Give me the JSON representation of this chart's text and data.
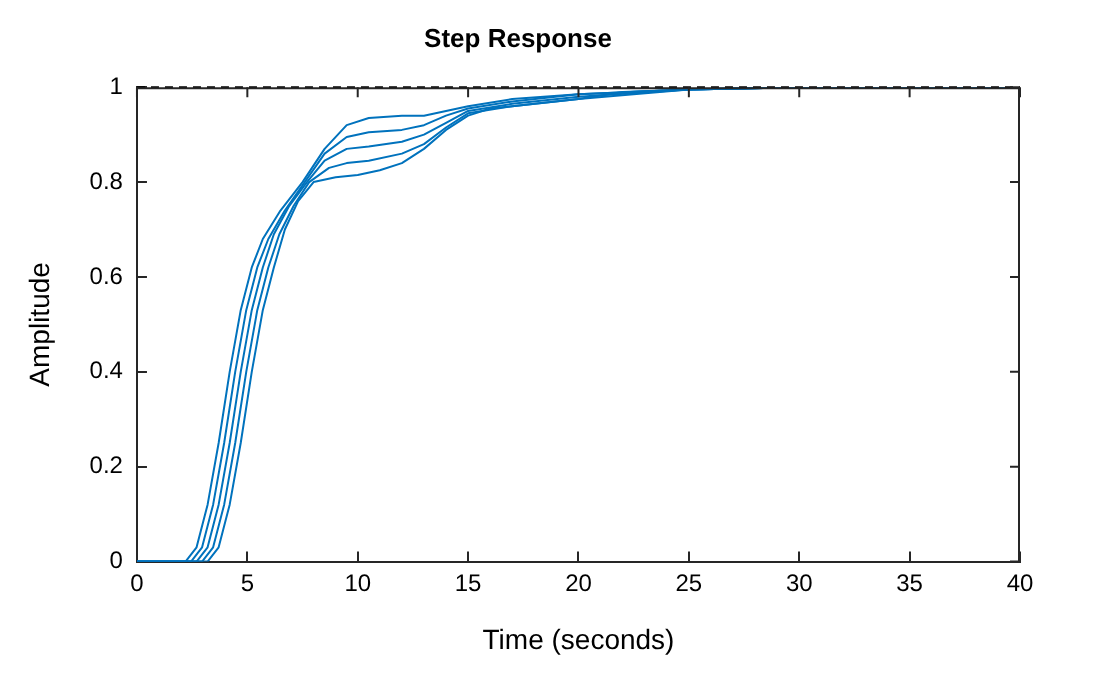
{
  "chart_data": {
    "type": "line",
    "title": "Step Response",
    "xlabel": "Time (seconds)",
    "ylabel": "Amplitude",
    "xlim": [
      0,
      40
    ],
    "xticks": [
      0,
      5,
      10,
      15,
      20,
      25,
      30,
      35,
      40
    ],
    "ylim": [
      0,
      1
    ],
    "yticks": [
      0,
      0.2,
      0.4,
      0.6,
      0.8,
      1
    ],
    "grid": false,
    "legend": false,
    "marker": "none",
    "line_style": "solid",
    "ref_lines": [
      {
        "axis": "y",
        "value": 1,
        "color": "#000000",
        "line_style": "dashed"
      }
    ],
    "series": [
      {
        "color": "#0072bd",
        "x": [
          0,
          2.2,
          2.7,
          3.2,
          3.7,
          4.2,
          4.7,
          5.2,
          5.7,
          6.5,
          7.5,
          8.5,
          9.5,
          10.5,
          12,
          13,
          14,
          15,
          17,
          20,
          25,
          30,
          40
        ],
        "values": [
          0,
          0,
          0.03,
          0.12,
          0.25,
          0.4,
          0.53,
          0.62,
          0.68,
          0.74,
          0.8,
          0.87,
          0.92,
          0.935,
          0.94,
          0.94,
          0.95,
          0.96,
          0.975,
          0.985,
          0.995,
          1,
          1
        ]
      },
      {
        "color": "#0072bd",
        "x": [
          0,
          2.45,
          2.95,
          3.45,
          3.95,
          4.45,
          4.95,
          5.45,
          5.95,
          6.7,
          7.6,
          8.5,
          9.5,
          10.5,
          12,
          13,
          14,
          15,
          17,
          20,
          25,
          30,
          40
        ],
        "values": [
          0,
          0,
          0.03,
          0.12,
          0.25,
          0.4,
          0.53,
          0.62,
          0.68,
          0.74,
          0.8,
          0.86,
          0.895,
          0.905,
          0.91,
          0.92,
          0.94,
          0.955,
          0.97,
          0.985,
          0.995,
          1,
          1
        ]
      },
      {
        "color": "#0072bd",
        "x": [
          0,
          2.7,
          3.2,
          3.7,
          4.2,
          4.7,
          5.2,
          5.7,
          6.2,
          6.9,
          7.7,
          8.5,
          9.5,
          10.5,
          12,
          13,
          14,
          15,
          17,
          20,
          25,
          30,
          40
        ],
        "values": [
          0,
          0,
          0.03,
          0.12,
          0.25,
          0.4,
          0.53,
          0.62,
          0.69,
          0.75,
          0.8,
          0.845,
          0.87,
          0.875,
          0.885,
          0.9,
          0.925,
          0.95,
          0.965,
          0.98,
          0.995,
          1,
          1
        ]
      },
      {
        "color": "#0072bd",
        "x": [
          0,
          2.95,
          3.45,
          3.95,
          4.45,
          4.95,
          5.45,
          5.95,
          6.45,
          7.1,
          7.8,
          8.7,
          9.5,
          10.5,
          12,
          13,
          14,
          15,
          17,
          20,
          25,
          30,
          40
        ],
        "values": [
          0,
          0,
          0.03,
          0.12,
          0.25,
          0.4,
          0.53,
          0.62,
          0.69,
          0.75,
          0.8,
          0.83,
          0.84,
          0.845,
          0.86,
          0.88,
          0.915,
          0.945,
          0.96,
          0.975,
          0.995,
          1,
          1
        ]
      },
      {
        "color": "#0072bd",
        "x": [
          0,
          3.2,
          3.7,
          4.2,
          4.7,
          5.2,
          5.7,
          6.2,
          6.7,
          7.3,
          8,
          9,
          10,
          11,
          12,
          13,
          14,
          15,
          16,
          18,
          20,
          22,
          25,
          30,
          40
        ],
        "values": [
          0,
          0,
          0.03,
          0.12,
          0.25,
          0.4,
          0.53,
          0.62,
          0.7,
          0.76,
          0.8,
          0.81,
          0.815,
          0.825,
          0.84,
          0.87,
          0.91,
          0.94,
          0.955,
          0.965,
          0.975,
          0.99,
          0.995,
          1,
          1
        ]
      }
    ]
  }
}
